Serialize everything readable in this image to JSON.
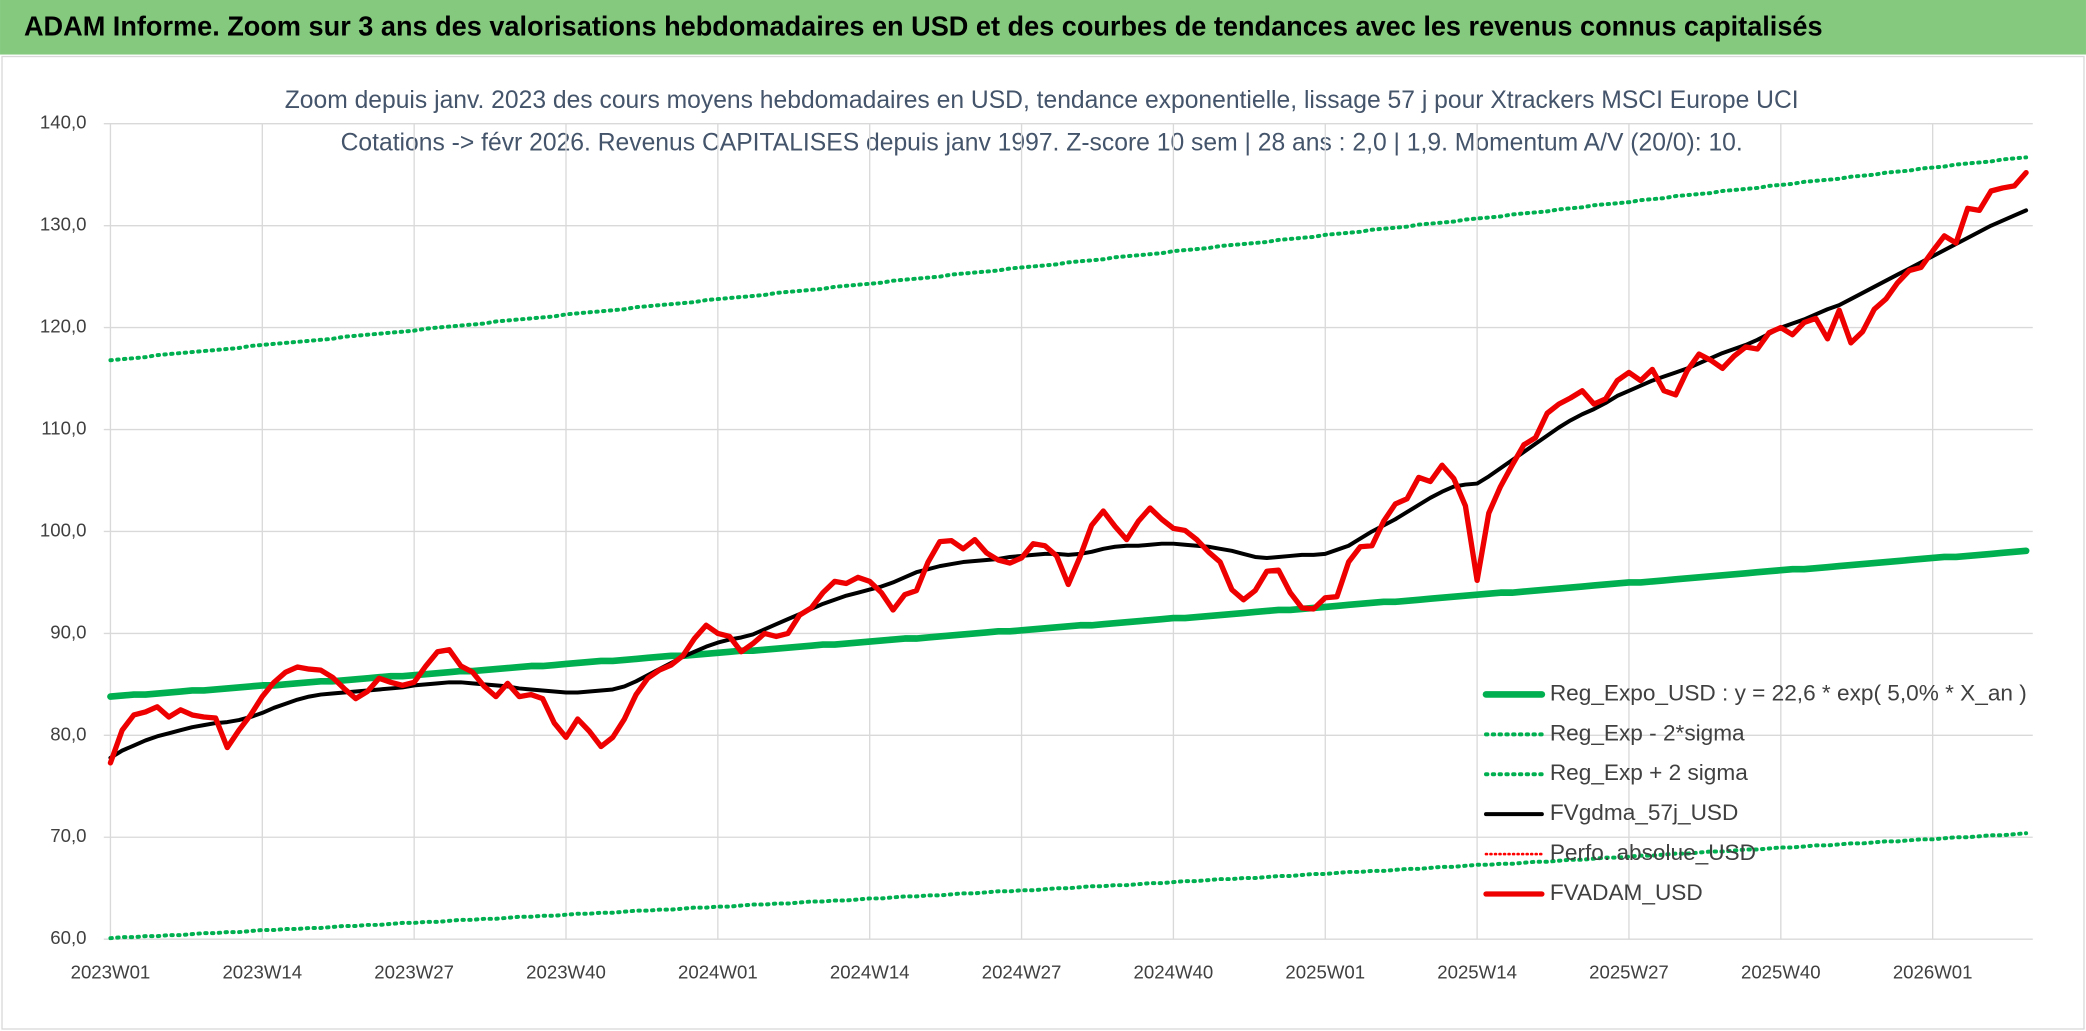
{
  "header": {
    "title": "ADAM Informe. Zoom sur 3 ans des valorisations hebdomadaires en USD et des courbes de tendances avec les revenus connus capitalisés"
  },
  "chart_data": {
    "type": "line",
    "title": "Zoom depuis janv. 2023 des cours moyens hebdomadaires en USD, tendance exponentielle, lissage 57 j pour Xtrackers MSCI Europe UCI",
    "subtitle": "Cotations -> févr 2026. Revenus CAPITALISES depuis janv 1997. Z-score 10 sem | 28 ans : 2,0 | 1,9. Momentum A/V (20/0): 10.",
    "ylim": [
      60,
      140
    ],
    "yticks": [
      {
        "value": 60,
        "label": "60,0"
      },
      {
        "value": 70,
        "label": "70,0"
      },
      {
        "value": 80,
        "label": "80,0"
      },
      {
        "value": 90,
        "label": "90,0"
      },
      {
        "value": 100,
        "label": "100,0"
      },
      {
        "value": 110,
        "label": "110,0"
      },
      {
        "value": 120,
        "label": "120,0"
      },
      {
        "value": 130,
        "label": "130,0"
      },
      {
        "value": 140,
        "label": "140,0"
      }
    ],
    "grid": true,
    "legend": "lower-right",
    "categories": [
      "2023W01",
      null,
      null,
      null,
      null,
      null,
      null,
      null,
      null,
      null,
      null,
      null,
      null,
      "2023W14",
      null,
      null,
      null,
      null,
      null,
      null,
      null,
      null,
      null,
      null,
      null,
      null,
      "2023W27",
      null,
      null,
      null,
      null,
      null,
      null,
      null,
      null,
      null,
      null,
      null,
      null,
      "2023W40",
      null,
      null,
      null,
      null,
      null,
      null,
      null,
      null,
      null,
      null,
      null,
      null,
      "2024W01",
      null,
      null,
      null,
      null,
      null,
      null,
      null,
      null,
      null,
      null,
      null,
      null,
      "2024W14",
      null,
      null,
      null,
      null,
      null,
      null,
      null,
      null,
      null,
      null,
      null,
      null,
      "2024W27",
      null,
      null,
      null,
      null,
      null,
      null,
      null,
      null,
      null,
      null,
      null,
      null,
      "2024W40",
      null,
      null,
      null,
      null,
      null,
      null,
      null,
      null,
      null,
      null,
      null,
      null,
      "2025W01",
      null,
      null,
      null,
      null,
      null,
      null,
      null,
      null,
      null,
      null,
      null,
      null,
      "2025W14",
      null,
      null,
      null,
      null,
      null,
      null,
      null,
      null,
      null,
      null,
      null,
      null,
      "2025W27",
      null,
      null,
      null,
      null,
      null,
      null,
      null,
      null,
      null,
      null,
      null,
      null,
      "2025W40",
      null,
      null,
      null,
      null,
      null,
      null,
      null,
      null,
      null,
      null,
      null,
      null,
      "2026W01",
      null,
      null,
      null,
      null,
      null,
      null,
      null,
      null
    ],
    "series": [
      {
        "name": "Reg_Expo_USD : y = 22,6 * exp( 5,0% *  X_an )",
        "color": "#00b050",
        "style": "solid",
        "width": 5,
        "values": [
          83.8,
          83.9,
          84.0,
          84.0,
          84.1,
          84.2,
          84.3,
          84.4,
          84.4,
          84.5,
          84.6,
          84.7,
          84.8,
          84.9,
          84.9,
          85.0,
          85.1,
          85.2,
          85.3,
          85.3,
          85.4,
          85.5,
          85.6,
          85.7,
          85.8,
          85.8,
          85.9,
          86.0,
          86.1,
          86.2,
          86.3,
          86.3,
          86.4,
          86.5,
          86.6,
          86.7,
          86.8,
          86.8,
          86.9,
          87.0,
          87.1,
          87.2,
          87.3,
          87.3,
          87.4,
          87.5,
          87.6,
          87.7,
          87.8,
          87.8,
          87.9,
          88.0,
          88.1,
          88.2,
          88.3,
          88.3,
          88.4,
          88.5,
          88.6,
          88.7,
          88.8,
          88.9,
          88.9,
          89.0,
          89.1,
          89.2,
          89.3,
          89.4,
          89.5,
          89.5,
          89.6,
          89.7,
          89.8,
          89.9,
          90.0,
          90.1,
          90.2,
          90.2,
          90.3,
          90.4,
          90.5,
          90.6,
          90.7,
          90.8,
          90.8,
          90.9,
          91.0,
          91.1,
          91.2,
          91.3,
          91.4,
          91.5,
          91.5,
          91.6,
          91.7,
          91.8,
          91.9,
          92.0,
          92.1,
          92.2,
          92.3,
          92.3,
          92.4,
          92.5,
          92.6,
          92.7,
          92.8,
          92.9,
          93.0,
          93.1,
          93.1,
          93.2,
          93.3,
          93.4,
          93.5,
          93.6,
          93.7,
          93.8,
          93.9,
          94.0,
          94.0,
          94.1,
          94.2,
          94.3,
          94.4,
          94.5,
          94.6,
          94.7,
          94.8,
          94.9,
          95.0,
          95.0,
          95.1,
          95.2,
          95.3,
          95.4,
          95.5,
          95.6,
          95.7,
          95.8,
          95.9,
          96.0,
          96.1,
          96.2,
          96.3,
          96.3,
          96.4,
          96.5,
          96.6,
          96.7,
          96.8,
          96.9,
          97.0,
          97.1,
          97.2,
          97.3,
          97.4,
          97.5,
          97.5,
          97.6,
          97.7,
          97.8,
          97.9,
          98.0,
          98.1
        ]
      },
      {
        "name": "Reg_Exp - 2*sigma",
        "color": "#00b050",
        "style": "dotted",
        "width": 3,
        "values": [
          60.1,
          60.2,
          60.2,
          60.3,
          60.3,
          60.4,
          60.4,
          60.5,
          60.6,
          60.6,
          60.7,
          60.7,
          60.8,
          60.9,
          60.9,
          61.0,
          61.0,
          61.1,
          61.1,
          61.2,
          61.3,
          61.3,
          61.4,
          61.4,
          61.5,
          61.6,
          61.6,
          61.7,
          61.7,
          61.8,
          61.9,
          61.9,
          62.0,
          62.0,
          62.1,
          62.2,
          62.2,
          62.3,
          62.3,
          62.4,
          62.5,
          62.5,
          62.6,
          62.6,
          62.7,
          62.8,
          62.8,
          62.9,
          62.9,
          63.0,
          63.1,
          63.1,
          63.2,
          63.2,
          63.3,
          63.4,
          63.4,
          63.5,
          63.5,
          63.6,
          63.7,
          63.7,
          63.8,
          63.8,
          63.9,
          64.0,
          64.0,
          64.1,
          64.2,
          64.2,
          64.3,
          64.3,
          64.4,
          64.5,
          64.5,
          64.6,
          64.7,
          64.7,
          64.8,
          64.8,
          64.9,
          65.0,
          65.0,
          65.1,
          65.2,
          65.2,
          65.3,
          65.3,
          65.4,
          65.5,
          65.5,
          65.6,
          65.7,
          65.7,
          65.8,
          65.9,
          65.9,
          66.0,
          66.0,
          66.1,
          66.2,
          66.2,
          66.3,
          66.4,
          66.4,
          66.5,
          66.6,
          66.6,
          66.7,
          66.7,
          66.8,
          66.9,
          66.9,
          67.0,
          67.1,
          67.1,
          67.2,
          67.3,
          67.3,
          67.4,
          67.4,
          67.5,
          67.6,
          67.6,
          67.7,
          67.8,
          67.8,
          67.9,
          68.0,
          68.0,
          68.1,
          68.2,
          68.2,
          68.3,
          68.4,
          68.4,
          68.5,
          68.6,
          68.6,
          68.7,
          68.8,
          68.8,
          68.9,
          69.0,
          69.0,
          69.1,
          69.2,
          69.2,
          69.3,
          69.4,
          69.4,
          69.5,
          69.6,
          69.6,
          69.7,
          69.8,
          69.8,
          69.9,
          70.0,
          70.0,
          70.1,
          70.2,
          70.2,
          70.3,
          70.4
        ]
      },
      {
        "name": "Reg_Exp + 2 sigma",
        "color": "#00b050",
        "style": "dotted",
        "width": 3,
        "values": [
          116.8,
          116.9,
          117.0,
          117.1,
          117.3,
          117.4,
          117.5,
          117.6,
          117.7,
          117.8,
          117.9,
          118.0,
          118.2,
          118.3,
          118.4,
          118.5,
          118.6,
          118.7,
          118.8,
          118.9,
          119.1,
          119.2,
          119.3,
          119.4,
          119.5,
          119.6,
          119.7,
          119.9,
          120.0,
          120.1,
          120.2,
          120.3,
          120.4,
          120.6,
          120.7,
          120.8,
          120.9,
          121.0,
          121.1,
          121.3,
          121.4,
          121.5,
          121.6,
          121.7,
          121.8,
          122.0,
          122.1,
          122.2,
          122.3,
          122.4,
          122.5,
          122.7,
          122.8,
          122.9,
          123.0,
          123.1,
          123.2,
          123.4,
          123.5,
          123.6,
          123.7,
          123.8,
          124.0,
          124.1,
          124.2,
          124.3,
          124.4,
          124.6,
          124.7,
          124.8,
          124.9,
          125.0,
          125.2,
          125.3,
          125.4,
          125.5,
          125.6,
          125.8,
          125.9,
          126.0,
          126.1,
          126.2,
          126.4,
          126.5,
          126.6,
          126.7,
          126.9,
          127.0,
          127.1,
          127.2,
          127.3,
          127.5,
          127.6,
          127.7,
          127.8,
          128.0,
          128.1,
          128.2,
          128.3,
          128.4,
          128.6,
          128.7,
          128.8,
          128.9,
          129.1,
          129.2,
          129.3,
          129.4,
          129.6,
          129.7,
          129.8,
          129.9,
          130.1,
          130.2,
          130.3,
          130.4,
          130.6,
          130.7,
          130.8,
          130.9,
          131.1,
          131.2,
          131.3,
          131.4,
          131.6,
          131.7,
          131.8,
          132.0,
          132.1,
          132.2,
          132.3,
          132.5,
          132.6,
          132.7,
          132.9,
          133.0,
          133.1,
          133.2,
          133.4,
          133.5,
          133.6,
          133.7,
          133.9,
          134.0,
          134.1,
          134.3,
          134.4,
          134.5,
          134.6,
          134.8,
          134.9,
          135.0,
          135.2,
          135.3,
          135.4,
          135.6,
          135.7,
          135.8,
          136.0,
          136.1,
          136.2,
          136.3,
          136.5,
          136.6,
          136.7
        ]
      },
      {
        "name": "FVgdma_57j_USD",
        "color": "#000000",
        "style": "solid",
        "width": 3,
        "values": [
          77.8,
          78.5,
          79.0,
          79.5,
          79.9,
          80.2,
          80.5,
          80.8,
          81.0,
          81.2,
          81.3,
          81.5,
          81.8,
          82.2,
          82.7,
          83.1,
          83.5,
          83.8,
          84.0,
          84.1,
          84.2,
          84.3,
          84.4,
          84.5,
          84.6,
          84.7,
          84.9,
          85.0,
          85.1,
          85.2,
          85.2,
          85.1,
          85.0,
          84.9,
          84.8,
          84.6,
          84.5,
          84.4,
          84.3,
          84.2,
          84.2,
          84.3,
          84.4,
          84.5,
          84.8,
          85.3,
          85.9,
          86.5,
          87.1,
          87.7,
          88.2,
          88.7,
          89.1,
          89.4,
          89.6,
          89.9,
          90.4,
          90.9,
          91.4,
          91.9,
          92.4,
          92.9,
          93.3,
          93.7,
          94.0,
          94.3,
          94.6,
          95.0,
          95.5,
          96.0,
          96.3,
          96.6,
          96.8,
          97.0,
          97.1,
          97.2,
          97.3,
          97.5,
          97.6,
          97.7,
          97.8,
          97.8,
          97.7,
          97.8,
          98.0,
          98.3,
          98.5,
          98.6,
          98.6,
          98.7,
          98.8,
          98.8,
          98.7,
          98.6,
          98.5,
          98.3,
          98.1,
          97.8,
          97.5,
          97.4,
          97.5,
          97.6,
          97.7,
          97.7,
          97.8,
          98.2,
          98.6,
          99.3,
          100.0,
          100.6,
          101.2,
          101.9,
          102.6,
          103.3,
          103.9,
          104.4,
          104.6,
          104.7,
          105.4,
          106.2,
          107.0,
          107.8,
          108.6,
          109.4,
          110.2,
          110.9,
          111.5,
          112.0,
          112.6,
          113.3,
          113.8,
          114.3,
          114.8,
          115.2,
          115.6,
          116.0,
          116.5,
          117.0,
          117.5,
          117.9,
          118.3,
          118.8,
          119.4,
          120.0,
          120.4,
          120.8,
          121.3,
          121.8,
          122.2,
          122.8,
          123.4,
          124.0,
          124.6,
          125.2,
          125.8,
          126.4,
          127.0,
          127.6,
          128.2,
          128.8,
          129.4,
          130.0,
          130.5,
          131.0,
          131.5
        ]
      },
      {
        "name": "Perfo. absolue_USD",
        "color": "#ff0000",
        "style": "dotted",
        "width": 2
      },
      {
        "name": "FVADAM_USD",
        "color": "#ee0000",
        "style": "solid",
        "width": 4,
        "values": [
          77.3,
          80.5,
          82.0,
          82.3,
          82.8,
          81.8,
          82.5,
          82.0,
          81.8,
          81.7,
          78.8,
          80.5,
          82.0,
          83.8,
          85.2,
          86.2,
          86.7,
          86.5,
          86.4,
          85.7,
          84.6,
          83.6,
          84.3,
          85.6,
          85.2,
          84.9,
          85.2,
          86.8,
          88.2,
          88.4,
          86.8,
          86.2,
          84.8,
          83.8,
          85.1,
          83.8,
          84.0,
          83.6,
          81.2,
          79.8,
          81.6,
          80.4,
          78.9,
          79.8,
          81.6,
          84.0,
          85.6,
          86.4,
          86.9,
          87.8,
          89.5,
          90.8,
          90.0,
          89.7,
          88.2,
          89.0,
          90.0,
          89.7,
          90.0,
          91.8,
          92.5,
          94.0,
          95.1,
          94.9,
          95.5,
          95.1,
          94.0,
          92.3,
          93.8,
          94.2,
          97.0,
          99.0,
          99.1,
          98.3,
          99.2,
          97.9,
          97.2,
          96.9,
          97.4,
          98.8,
          98.6,
          97.6,
          94.8,
          97.5,
          100.6,
          102.0,
          100.5,
          99.2,
          101.0,
          102.3,
          101.2,
          100.3,
          100.1,
          99.2,
          98.0,
          97.0,
          94.3,
          93.3,
          94.2,
          96.1,
          96.2,
          94.0,
          92.5,
          92.4,
          93.5,
          93.6,
          97.0,
          98.5,
          98.6,
          101.0,
          102.7,
          103.2,
          105.3,
          104.9,
          106.5,
          105.2,
          102.5,
          95.2,
          101.8,
          104.4,
          106.5,
          108.5,
          109.2,
          111.6,
          112.5,
          113.1,
          113.8,
          112.5,
          113.0,
          114.8,
          115.6,
          114.8,
          115.9,
          113.8,
          113.4,
          115.8,
          117.4,
          116.8,
          116.0,
          117.2,
          118.1,
          117.9,
          119.5,
          120.0,
          119.3,
          120.5,
          120.9,
          118.9,
          121.7,
          118.5,
          119.6,
          121.8,
          122.8,
          124.4,
          125.6,
          125.9,
          127.5,
          129.0,
          128.3,
          131.7,
          131.5,
          133.4,
          133.7,
          133.9,
          135.2
        ]
      }
    ]
  }
}
